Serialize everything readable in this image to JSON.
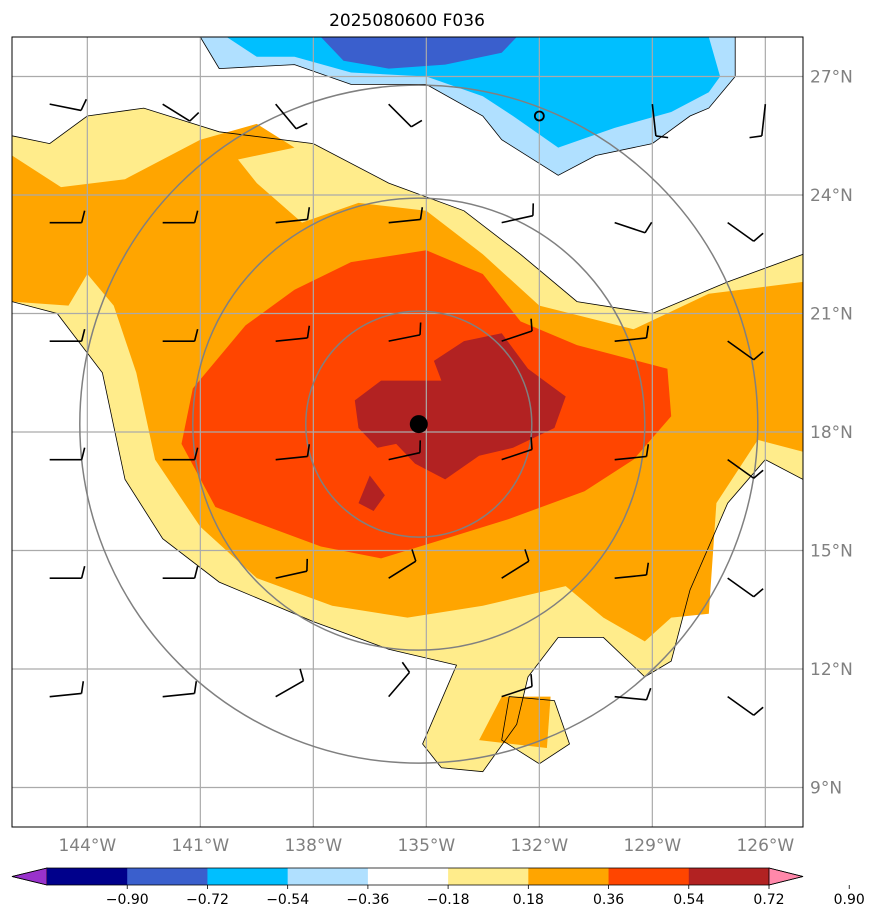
{
  "chart_data": {
    "type": "heatmap",
    "title": "2025080600 F036",
    "xlim": [
      -146,
      -125
    ],
    "ylim": [
      8,
      28
    ],
    "x_ticks": [
      -144,
      -141,
      -138,
      -135,
      -132,
      -129,
      -126
    ],
    "x_tick_labels": [
      "144°W",
      "141°W",
      "138°W",
      "135°W",
      "132°W",
      "129°W",
      "126°W"
    ],
    "y_ticks": [
      9,
      12,
      15,
      18,
      21,
      24,
      27
    ],
    "y_tick_labels": [
      "9°N",
      "12°N",
      "15°N",
      "18°N",
      "21°N",
      "24°N",
      "27°N"
    ],
    "grid": true,
    "center": {
      "lon": -135.2,
      "lat": 18.2
    },
    "secondary_marker": {
      "lon": -132.0,
      "lat": 26.0
    },
    "range_rings_deg": [
      3,
      6,
      9
    ],
    "colorbar": {
      "levels": [
        -0.9,
        -0.72,
        -0.54,
        -0.36,
        -0.18,
        0.18,
        0.36,
        0.54,
        0.72,
        0.9
      ],
      "tick_labels": [
        "−0.90",
        "−0.72",
        "−0.54",
        "−0.36",
        "−0.18",
        "0.18",
        "0.36",
        "0.54",
        "0.72",
        "0.90"
      ],
      "colors": [
        "#9932CC",
        "#00008B",
        "#3A5FCD",
        "#00BFFF",
        "#B0E0FF",
        "#FFFFFF",
        "#FFEC8B",
        "#FFA500",
        "#FF4500",
        "#B22222",
        "#FF88AA"
      ],
      "extend": "both"
    },
    "contour_regions": [
      {
        "level": 0.18,
        "color": "#FFEC8B",
        "polygon": [
          [
            -146,
            25.5
          ],
          [
            -145,
            25.3
          ],
          [
            -144,
            26
          ],
          [
            -142.5,
            26.2
          ],
          [
            -140.5,
            25.6
          ],
          [
            -138,
            25.3
          ],
          [
            -136,
            24.3
          ],
          [
            -134,
            23.6
          ],
          [
            -132.5,
            22.5
          ],
          [
            -131,
            21.3
          ],
          [
            -129,
            21
          ],
          [
            -127,
            21.8
          ],
          [
            -125,
            22.5
          ],
          [
            -125,
            16.8
          ],
          [
            -126,
            17.3
          ],
          [
            -127,
            16.2
          ],
          [
            -128,
            14
          ],
          [
            -128.5,
            12.2
          ],
          [
            -129.2,
            11.8
          ],
          [
            -130.3,
            12.8
          ],
          [
            -131.5,
            12.8
          ],
          [
            -132.3,
            11.8
          ],
          [
            -132.6,
            10.6
          ],
          [
            -133.5,
            9.4
          ],
          [
            -134.6,
            9.5
          ],
          [
            -135.1,
            10.1
          ],
          [
            -134.2,
            12.1
          ],
          [
            -136,
            12.5
          ],
          [
            -138,
            13.2
          ],
          [
            -140.5,
            14.2
          ],
          [
            -142,
            15.3
          ],
          [
            -143,
            16.8
          ],
          [
            -143.6,
            19.5
          ],
          [
            -144.8,
            21
          ],
          [
            -146,
            21.3
          ]
        ]
      },
      {
        "level": 0.18,
        "color": "#FFEC8B",
        "polygon": [
          [
            -133,
            10.2
          ],
          [
            -132.8,
            11.3
          ],
          [
            -131.6,
            11.2
          ],
          [
            -131.2,
            10.1
          ],
          [
            -132,
            9.6
          ]
        ]
      },
      {
        "level": 0.36,
        "color": "#FFA500",
        "polygon": [
          [
            -146,
            25
          ],
          [
            -144.7,
            24.2
          ],
          [
            -143,
            24.4
          ],
          [
            -141,
            25.4
          ],
          [
            -139.5,
            25.8
          ],
          [
            -138.5,
            25.2
          ],
          [
            -140,
            24.9
          ],
          [
            -139.5,
            24.3
          ],
          [
            -138.3,
            23.3
          ],
          [
            -136.8,
            23.8
          ],
          [
            -135,
            23.6
          ],
          [
            -133.5,
            22.5
          ],
          [
            -132,
            21.2
          ],
          [
            -129.5,
            20.6
          ],
          [
            -127.5,
            21.5
          ],
          [
            -125,
            21.8
          ],
          [
            -125,
            17.5
          ],
          [
            -126.2,
            17.8
          ],
          [
            -127.3,
            16.2
          ],
          [
            -127.5,
            13.4
          ],
          [
            -128.5,
            13.3
          ],
          [
            -129.2,
            12.7
          ],
          [
            -130.3,
            13.3
          ],
          [
            -131.3,
            14.1
          ],
          [
            -133.5,
            13.6
          ],
          [
            -135.5,
            13.3
          ],
          [
            -137.5,
            13.6
          ],
          [
            -139.5,
            14.3
          ],
          [
            -141,
            15.6
          ],
          [
            -142.2,
            17.3
          ],
          [
            -142.7,
            19.5
          ],
          [
            -143.3,
            21.2
          ],
          [
            -144,
            22
          ],
          [
            -144.5,
            21.2
          ],
          [
            -146,
            21.3
          ]
        ]
      },
      {
        "level": 0.36,
        "color": "#FFA500",
        "polygon": [
          [
            -133,
            11.3
          ],
          [
            -131.7,
            11.3
          ],
          [
            -131.8,
            10
          ],
          [
            -133.6,
            10.2
          ]
        ]
      },
      {
        "level": 0.54,
        "color": "#FF4500",
        "polygon": [
          [
            -138.5,
            21.6
          ],
          [
            -137,
            22.3
          ],
          [
            -135,
            22.6
          ],
          [
            -133.5,
            22
          ],
          [
            -132.5,
            20.8
          ],
          [
            -131,
            20.2
          ],
          [
            -128.6,
            19.6
          ],
          [
            -128.5,
            18.4
          ],
          [
            -129.5,
            17.3
          ],
          [
            -130.8,
            16.5
          ],
          [
            -132.8,
            15.8
          ],
          [
            -134.5,
            15.3
          ],
          [
            -136.2,
            14.8
          ],
          [
            -137.8,
            15.1
          ],
          [
            -139.5,
            15.7
          ],
          [
            -140.6,
            16.1
          ],
          [
            -141.5,
            17.7
          ],
          [
            -141.2,
            19.1
          ],
          [
            -139.8,
            20.7
          ]
        ]
      },
      {
        "level": 0.72,
        "color": "#B22222",
        "polygon": [
          [
            -134,
            20.3
          ],
          [
            -133,
            20.5
          ],
          [
            -132.3,
            19.6
          ],
          [
            -131.3,
            18.9
          ],
          [
            -131.6,
            18.1
          ],
          [
            -132.7,
            17.6
          ],
          [
            -133.6,
            17.4
          ],
          [
            -134.5,
            16.8
          ],
          [
            -135.3,
            17.2
          ],
          [
            -135.8,
            17.7
          ],
          [
            -136.3,
            17.6
          ],
          [
            -136.8,
            18.1
          ],
          [
            -136.9,
            18.8
          ],
          [
            -136.2,
            19.3
          ],
          [
            -134.6,
            19.3
          ],
          [
            -134.8,
            19.8
          ]
        ]
      },
      {
        "level": 0.72,
        "color": "#B22222",
        "polygon": [
          [
            -136.8,
            16.2
          ],
          [
            -136.5,
            16.9
          ],
          [
            -136.1,
            16.4
          ],
          [
            -136.4,
            16
          ]
        ]
      },
      {
        "level": -0.18,
        "color": "#B0E0FF",
        "polygon": [
          [
            -141,
            28
          ],
          [
            -140.5,
            27.2
          ],
          [
            -138.5,
            27.3
          ],
          [
            -137,
            26.8
          ],
          [
            -135,
            26.8
          ],
          [
            -133.5,
            26
          ],
          [
            -133,
            25.4
          ],
          [
            -131.5,
            24.5
          ],
          [
            -130.5,
            25
          ],
          [
            -129,
            25.3
          ],
          [
            -128,
            26
          ],
          [
            -127.5,
            26.2
          ],
          [
            -126.8,
            27
          ],
          [
            -126.8,
            28
          ]
        ]
      },
      {
        "level": -0.36,
        "color": "#00BFFF",
        "polygon": [
          [
            -140.3,
            28
          ],
          [
            -139.5,
            27.5
          ],
          [
            -138.5,
            27.5
          ],
          [
            -137,
            27.1
          ],
          [
            -135,
            27
          ],
          [
            -133.5,
            26.5
          ],
          [
            -132.7,
            26
          ],
          [
            -131.5,
            25.2
          ],
          [
            -130,
            25.7
          ],
          [
            -128.5,
            26.1
          ],
          [
            -127.5,
            26.6
          ],
          [
            -127.2,
            27
          ],
          [
            -127.5,
            28
          ]
        ]
      },
      {
        "level": -0.54,
        "color": "#3A5FCD",
        "polygon": [
          [
            -137.8,
            28
          ],
          [
            -137.2,
            27.4
          ],
          [
            -136,
            27.2
          ],
          [
            -134.5,
            27.3
          ],
          [
            -133,
            27.6
          ],
          [
            -132.6,
            28
          ]
        ]
      }
    ],
    "barbs": [
      {
        "lon": -145,
        "lat": 26.3,
        "u": -10,
        "v": 2
      },
      {
        "lon": -142,
        "lat": 26.3,
        "u": -8,
        "v": 5
      },
      {
        "lon": -139,
        "lat": 26.3,
        "u": -5,
        "v": 6
      },
      {
        "lon": -136,
        "lat": 26.3,
        "u": -6,
        "v": 6
      },
      {
        "lon": -129,
        "lat": 26.3,
        "u": -1,
        "v": 9
      },
      {
        "lon": -126,
        "lat": 26.3,
        "u": 1,
        "v": 9
      },
      {
        "lon": -145,
        "lat": 23.3,
        "u": -10,
        "v": 0
      },
      {
        "lon": -142,
        "lat": 23.3,
        "u": -10,
        "v": 0
      },
      {
        "lon": -139,
        "lat": 23.3,
        "u": -10,
        "v": -1
      },
      {
        "lon": -136,
        "lat": 23.3,
        "u": -10,
        "v": -1
      },
      {
        "lon": -133,
        "lat": 23.3,
        "u": -9,
        "v": -2
      },
      {
        "lon": -130,
        "lat": 23.3,
        "u": -9,
        "v": 3
      },
      {
        "lon": -127,
        "lat": 23.3,
        "u": -7,
        "v": 5
      },
      {
        "lon": -145,
        "lat": 20.3,
        "u": -10,
        "v": 0
      },
      {
        "lon": -142,
        "lat": 20.3,
        "u": -10,
        "v": 0
      },
      {
        "lon": -139,
        "lat": 20.3,
        "u": -10,
        "v": -1
      },
      {
        "lon": -136,
        "lat": 20.3,
        "u": -10,
        "v": -2
      },
      {
        "lon": -133,
        "lat": 20.3,
        "u": -9,
        "v": -3
      },
      {
        "lon": -130,
        "lat": 20.3,
        "u": -10,
        "v": -1
      },
      {
        "lon": -127,
        "lat": 20.3,
        "u": -7,
        "v": 5
      },
      {
        "lon": -145,
        "lat": 17.3,
        "u": -10,
        "v": 0
      },
      {
        "lon": -142,
        "lat": 17.3,
        "u": -10,
        "v": 0
      },
      {
        "lon": -139,
        "lat": 17.3,
        "u": -10,
        "v": -1
      },
      {
        "lon": -136,
        "lat": 17.3,
        "u": -9,
        "v": -2
      },
      {
        "lon": -133,
        "lat": 17.3,
        "u": -9,
        "v": -3
      },
      {
        "lon": -130,
        "lat": 17.3,
        "u": -10,
        "v": -1
      },
      {
        "lon": -127,
        "lat": 17.3,
        "u": -7,
        "v": 5
      },
      {
        "lon": -145,
        "lat": 14.3,
        "u": -10,
        "v": 0
      },
      {
        "lon": -142,
        "lat": 14.3,
        "u": -10,
        "v": 0
      },
      {
        "lon": -139,
        "lat": 14.3,
        "u": -9,
        "v": -2
      },
      {
        "lon": -136,
        "lat": 14.3,
        "u": -8,
        "v": -5
      },
      {
        "lon": -133,
        "lat": 14.3,
        "u": -8,
        "v": -5
      },
      {
        "lon": -130,
        "lat": 14.3,
        "u": -10,
        "v": -1
      },
      {
        "lon": -127,
        "lat": 14.3,
        "u": -7,
        "v": 5
      },
      {
        "lon": -145,
        "lat": 11.3,
        "u": -10,
        "v": -1
      },
      {
        "lon": -142,
        "lat": 11.3,
        "u": -10,
        "v": -1
      },
      {
        "lon": -139,
        "lat": 11.3,
        "u": -7,
        "v": -4
      },
      {
        "lon": -136,
        "lat": 11.3,
        "u": -6,
        "v": -7
      },
      {
        "lon": -133,
        "lat": 11.3,
        "u": -9,
        "v": -3
      },
      {
        "lon": -130,
        "lat": 11.3,
        "u": -10,
        "v": 1
      },
      {
        "lon": -127,
        "lat": 11.3,
        "u": -7,
        "v": 5
      }
    ]
  }
}
